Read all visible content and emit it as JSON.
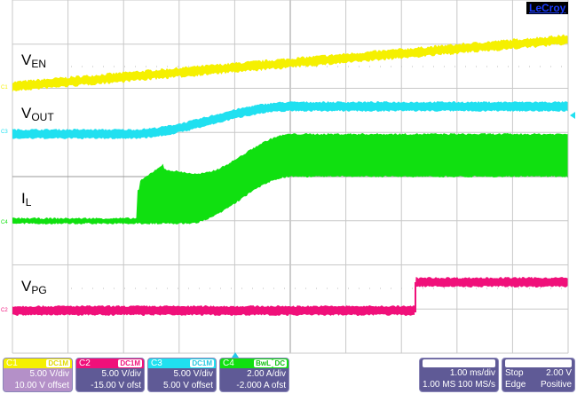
{
  "logo": "LeCroy",
  "trace_labels": {
    "ven": {
      "main": "V",
      "sub": "EN"
    },
    "vout": {
      "main": "V",
      "sub": "OUT"
    },
    "il": {
      "main": "I",
      "sub": "L"
    },
    "vpg": {
      "main": "V",
      "sub": "PG"
    }
  },
  "colors": {
    "c1": "#f5f000",
    "c2": "#f0107a",
    "c3": "#20e0f0",
    "c4": "#10e010",
    "panel": "#5f5a96",
    "grid": "#c8c8c8"
  },
  "channels": [
    {
      "name": "C1",
      "coupling": "DC1M",
      "scale": "5.00 V/div",
      "offset": "10.00 V offset"
    },
    {
      "name": "C2",
      "coupling": "DC1M",
      "scale": "5.00 V/div",
      "offset": "-15.00 V ofst"
    },
    {
      "name": "C3",
      "coupling": "DC1M",
      "scale": "5.00 V/div",
      "offset": "5.00 V offset"
    },
    {
      "name": "C4",
      "bwl": "BwL",
      "coupling": "DC",
      "scale": "2.00 A/div",
      "offset": "-2.000 A ofst"
    }
  ],
  "timebase": {
    "per_div": "1.00 ms/div",
    "memory": "1.00 MS",
    "rate": "100 MS/s"
  },
  "trigger": {
    "mode": "Stop",
    "level": "2.00 V",
    "type": "Edge",
    "slope": "Positive"
  }
}
